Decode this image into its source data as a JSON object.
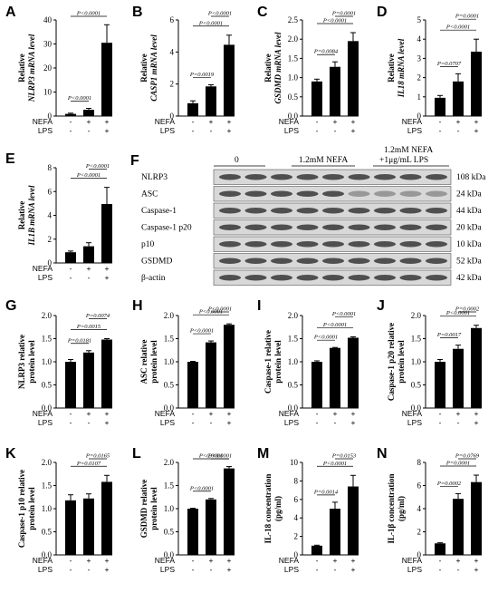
{
  "chart_data": [
    {
      "panel": "A",
      "type": "bar",
      "ylabel_lines": [
        "Relative",
        "NLRP3 mRNA level"
      ],
      "ylim": [
        0,
        40
      ],
      "ticks": [
        0,
        10,
        20,
        30,
        40
      ],
      "values": [
        0.9,
        2.6,
        30.5
      ],
      "errors": [
        0.3,
        0.6,
        7.5
      ],
      "comparisons": [
        {
          "from": 0,
          "to": 1,
          "p": "P<0.0001"
        },
        {
          "from": 0,
          "to": 2,
          "p": "P<0.0001"
        }
      ],
      "nefa": [
        "-",
        "+",
        "+"
      ],
      "lps": [
        "-",
        "-",
        "+"
      ]
    },
    {
      "panel": "B",
      "type": "bar",
      "ylabel_lines": [
        "Relative",
        "CASP1 mRNA level"
      ],
      "ylim": [
        0,
        6
      ],
      "ticks": [
        0,
        2,
        4,
        6
      ],
      "values": [
        0.8,
        1.85,
        4.45
      ],
      "errors": [
        0.15,
        0.1,
        0.6
      ],
      "comparisons": [
        {
          "from": 0,
          "to": 1,
          "p": "P=0.0019"
        },
        {
          "from": 0,
          "to": 2,
          "p": "P<0.0001"
        },
        {
          "from": 1,
          "to": 2,
          "p": "P<0.0001"
        }
      ],
      "nefa": [
        "-",
        "+",
        "+"
      ],
      "lps": [
        "-",
        "-",
        "+"
      ]
    },
    {
      "panel": "C",
      "type": "bar",
      "ylabel_lines": [
        "Relative",
        "GSDMD mRNA level"
      ],
      "ylim": [
        0,
        2.5
      ],
      "ticks": [
        0,
        0.5,
        1,
        1.5,
        2,
        2.5
      ],
      "values": [
        0.9,
        1.28,
        1.95
      ],
      "errors": [
        0.06,
        0.13,
        0.22
      ],
      "comparisons": [
        {
          "from": 0,
          "to": 1,
          "p": "P=0.0084"
        },
        {
          "from": 0,
          "to": 2,
          "p": "P<0.0001"
        },
        {
          "from": 1,
          "to": 2,
          "p": "P=0.0001"
        }
      ],
      "nefa": [
        "-",
        "+",
        "+"
      ],
      "lps": [
        "-",
        "-",
        "+"
      ]
    },
    {
      "panel": "D",
      "type": "bar",
      "ylabel_lines": [
        "Relative",
        "IL18 mRNA level"
      ],
      "ylim": [
        0,
        5
      ],
      "ticks": [
        0,
        1,
        2,
        3,
        4,
        5
      ],
      "values": [
        0.95,
        1.8,
        3.35
      ],
      "errors": [
        0.12,
        0.4,
        0.65
      ],
      "comparisons": [
        {
          "from": 0,
          "to": 1,
          "p": "P=0.0707"
        },
        {
          "from": 0,
          "to": 2,
          "p": "P<0.0001"
        },
        {
          "from": 1,
          "to": 2,
          "p": "P=0.0001"
        }
      ],
      "nefa": [
        "-",
        "+",
        "+"
      ],
      "lps": [
        "-",
        "-",
        "+"
      ]
    },
    {
      "panel": "E",
      "type": "bar",
      "ylabel_lines": [
        "Relative",
        "IL1B mRNA level"
      ],
      "ylim": [
        0,
        8
      ],
      "ticks": [
        0,
        2,
        4,
        6,
        8
      ],
      "values": [
        0.9,
        1.4,
        4.95
      ],
      "errors": [
        0.1,
        0.3,
        1.4
      ],
      "comparisons": [
        {
          "from": 0,
          "to": 2,
          "p": "P<0.0001"
        },
        {
          "from": 1,
          "to": 2,
          "p": "P<0.0001"
        }
      ],
      "nefa": [
        "-",
        "+",
        "+"
      ],
      "lps": [
        "-",
        "-",
        "+"
      ]
    },
    {
      "panel": "G",
      "type": "bar",
      "ylabel_lines": [
        "NLRP3 relative",
        "protein level"
      ],
      "ylim": [
        0,
        2.0
      ],
      "ticks": [
        0,
        0.5,
        1.0,
        1.5,
        2.0
      ],
      "values": [
        1.0,
        1.2,
        1.48
      ],
      "errors": [
        0.05,
        0.04,
        0.02
      ],
      "comparisons": [
        {
          "from": 0,
          "to": 1,
          "p": "P=0.0181"
        },
        {
          "from": 0,
          "to": 2,
          "p": "P=0.0015"
        },
        {
          "from": 1,
          "to": 2,
          "p": "P=0.0074"
        }
      ],
      "nefa": [
        "-",
        "+",
        "+"
      ],
      "lps": [
        "-",
        "-",
        "+"
      ]
    },
    {
      "panel": "H",
      "type": "bar",
      "ylabel_lines": [
        "ASC relative",
        "protein level"
      ],
      "ylim": [
        0,
        2.0
      ],
      "ticks": [
        0,
        0.5,
        1.0,
        1.5,
        2.0
      ],
      "values": [
        1.0,
        1.42,
        1.8
      ],
      "errors": [
        0.01,
        0.03,
        0.02
      ],
      "comparisons": [
        {
          "from": 0,
          "to": 1,
          "p": "P<0.0001"
        },
        {
          "from": 0,
          "to": 2,
          "p": "P<0.0001"
        },
        {
          "from": 1,
          "to": 2,
          "p": "P<0.0001"
        }
      ],
      "nefa": [
        "-",
        "+",
        "+"
      ],
      "lps": [
        "-",
        "-",
        "+"
      ]
    },
    {
      "panel": "I",
      "type": "bar",
      "ylabel_lines": [
        "Caspase-1 relative",
        "protein level"
      ],
      "ylim": [
        0,
        2.0
      ],
      "ticks": [
        0,
        0.5,
        1.0,
        1.5,
        2.0
      ],
      "values": [
        1.0,
        1.3,
        1.52
      ],
      "errors": [
        0.02,
        0.01,
        0.02
      ],
      "comparisons": [
        {
          "from": 0,
          "to": 1,
          "p": "P<0.0001"
        },
        {
          "from": 0,
          "to": 2,
          "p": "P<0.0001"
        },
        {
          "from": 1,
          "to": 2,
          "p": "P<0.0001"
        }
      ],
      "nefa": [
        "-",
        "+",
        "+"
      ],
      "lps": [
        "-",
        "-",
        "+"
      ]
    },
    {
      "panel": "J",
      "type": "bar",
      "ylabel_lines": [
        "Caspase-1 p20 relative",
        "protein level"
      ],
      "ylim": [
        0,
        2.0
      ],
      "ticks": [
        0,
        0.5,
        1.0,
        1.5,
        2.0
      ],
      "values": [
        1.0,
        1.28,
        1.73
      ],
      "errors": [
        0.05,
        0.08,
        0.06
      ],
      "comparisons": [
        {
          "from": 0,
          "to": 1,
          "p": "P=0.0017"
        },
        {
          "from": 0,
          "to": 2,
          "p": "P<0.0001"
        },
        {
          "from": 1,
          "to": 2,
          "p": "P=0.0002"
        }
      ],
      "nefa": [
        "-",
        "+",
        "+"
      ],
      "lps": [
        "-",
        "-",
        "+"
      ]
    },
    {
      "panel": "K",
      "type": "bar",
      "ylabel_lines": [
        "Caspase-1 p10 relative",
        "protein level"
      ],
      "ylim": [
        0,
        2.0
      ],
      "ticks": [
        0,
        0.5,
        1.0,
        1.5,
        2.0
      ],
      "values": [
        1.18,
        1.22,
        1.58
      ],
      "errors": [
        0.12,
        0.1,
        0.14
      ],
      "comparisons": [
        {
          "from": 0,
          "to": 2,
          "p": "P=0.0107"
        },
        {
          "from": 1,
          "to": 2,
          "p": "P=0.0165"
        }
      ],
      "nefa": [
        "-",
        "+",
        "+"
      ],
      "lps": [
        "-",
        "-",
        "+"
      ]
    },
    {
      "panel": "L",
      "type": "bar",
      "ylabel_lines": [
        "GSDMD relative",
        "protein level"
      ],
      "ylim": [
        0,
        2.0
      ],
      "ticks": [
        0,
        0.5,
        1.0,
        1.5,
        2.0
      ],
      "values": [
        1.0,
        1.2,
        1.87
      ],
      "errors": [
        0.01,
        0.02,
        0.04
      ],
      "comparisons": [
        {
          "from": 0,
          "to": 1,
          "p": "P<0.0001"
        },
        {
          "from": 0,
          "to": 2,
          "p": "P<0.0001"
        },
        {
          "from": 1,
          "to": 2,
          "p": "P<0.0001"
        }
      ],
      "nefa": [
        "-",
        "+",
        "+"
      ],
      "lps": [
        "-",
        "-",
        "+"
      ]
    },
    {
      "panel": "M",
      "type": "bar",
      "ylabel_lines": [
        "IL-18 concentration",
        "(pg/ml)"
      ],
      "ylim": [
        0,
        10
      ],
      "ticks": [
        0,
        2,
        4,
        6,
        8,
        10
      ],
      "values": [
        1.0,
        5.0,
        7.4
      ],
      "errors": [
        0.05,
        0.7,
        1.2
      ],
      "comparisons": [
        {
          "from": 0,
          "to": 1,
          "p": "P=0.0014"
        },
        {
          "from": 0,
          "to": 2,
          "p": "P<0.0001"
        },
        {
          "from": 1,
          "to": 2,
          "p": "P=0.0153"
        }
      ],
      "nefa": [
        "-",
        "+",
        "+"
      ],
      "lps": [
        "-",
        "-",
        "+"
      ]
    },
    {
      "panel": "N",
      "type": "bar",
      "ylabel_lines": [
        "IL-1β concentration",
        "(pg/ml)"
      ],
      "ylim": [
        0,
        8
      ],
      "ticks": [
        0,
        2,
        4,
        6,
        8
      ],
      "values": [
        1.0,
        4.85,
        6.3
      ],
      "errors": [
        0.05,
        0.45,
        0.6
      ],
      "comparisons": [
        {
          "from": 0,
          "to": 1,
          "p": "P=0.0002"
        },
        {
          "from": 0,
          "to": 2,
          "p": "P=0.0001"
        },
        {
          "from": 1,
          "to": 2,
          "p": "P=0.0769"
        }
      ],
      "nefa": [
        "-",
        "+",
        "+"
      ],
      "lps": [
        "-",
        "-",
        "+"
      ]
    }
  ],
  "condition_labels": {
    "nefa": "NEFA",
    "lps": "LPS"
  },
  "western_blot": {
    "panel": "F",
    "groups": [
      "0",
      "1.2mM NEFA",
      "1.2mM NEFA",
      "+1μg/mL LPS"
    ],
    "rows": [
      {
        "protein": "NLRP3",
        "size": "108 kDa"
      },
      {
        "protein": "ASC",
        "size": "24 kDa"
      },
      {
        "protein": "Caspase-1",
        "size": "44 kDa"
      },
      {
        "protein": "Caspase-1 p20",
        "size": "20 kDa"
      },
      {
        "protein": "p10",
        "size": "10 kDa"
      },
      {
        "protein": "GSDMD",
        "size": "52 kDa"
      },
      {
        "protein": "β-actin",
        "size": "42 kDa"
      }
    ]
  }
}
